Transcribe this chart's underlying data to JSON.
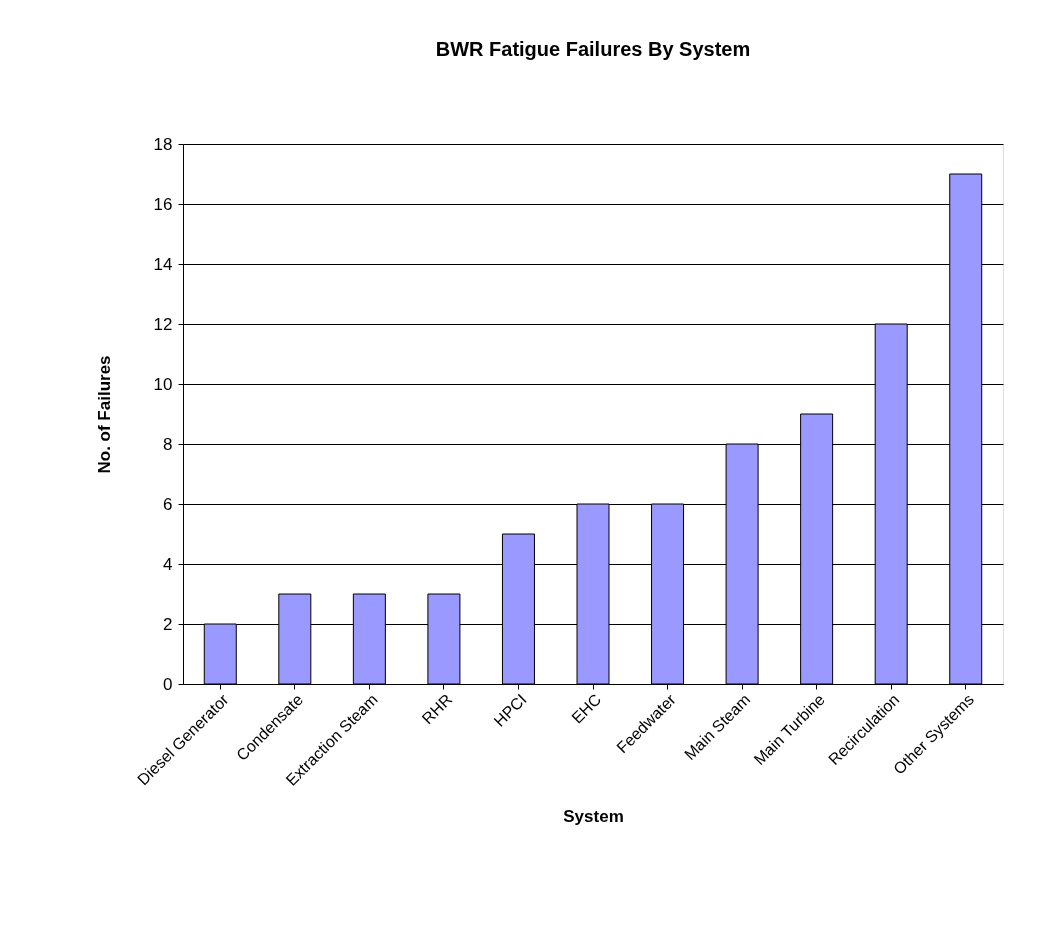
{
  "chart_data": {
    "type": "bar",
    "title": "BWR Fatigue Failures By System",
    "xlabel": "System",
    "ylabel": "No. of Failures",
    "categories": [
      "Diesel Generator",
      "Condensate",
      "Extraction Steam",
      "RHR",
      "HPCI",
      "EHC",
      "Feedwater",
      "Main Steam",
      "Main Turbine",
      "Recirculation",
      "Other Systems"
    ],
    "values": [
      2,
      3,
      3,
      3,
      5,
      6,
      6,
      8,
      9,
      12,
      17
    ],
    "color": "#9999ff",
    "ylim": [
      0,
      18
    ],
    "yticks": [
      0,
      2,
      4,
      6,
      8,
      10,
      12,
      14,
      16,
      18
    ],
    "grid": "y"
  }
}
